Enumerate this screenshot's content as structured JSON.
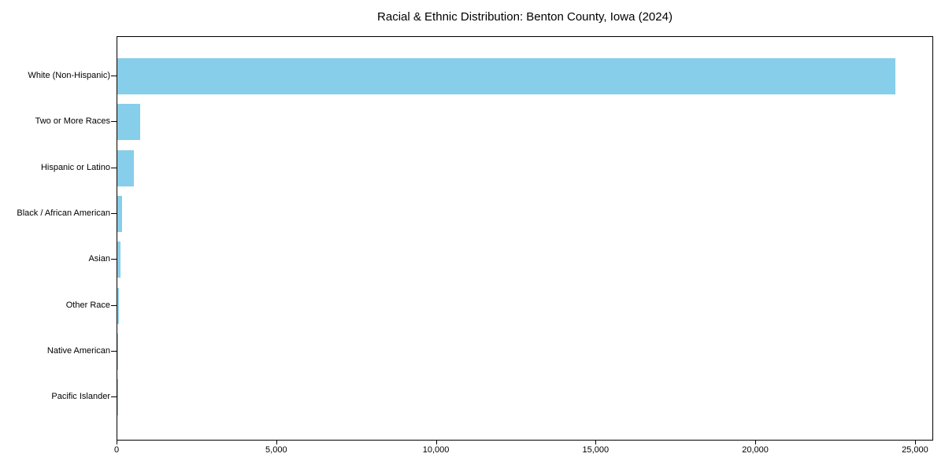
{
  "chart_data": {
    "type": "bar",
    "orientation": "horizontal",
    "title": "Racial & Ethnic Distribution: Benton County, Iowa (2024)",
    "categories": [
      "White (Non-Hispanic)",
      "Two or More Races",
      "Hispanic or Latino",
      "Black / African American",
      "Asian",
      "Other Race",
      "Native American",
      "Pacific Islander"
    ],
    "values": [
      24350,
      715,
      525,
      155,
      90,
      50,
      25,
      5
    ],
    "xlabel": "",
    "ylabel": "",
    "xlim": [
      0,
      25570
    ],
    "xticks": {
      "values": [
        0,
        5000,
        10000,
        15000,
        20000,
        25000
      ],
      "labels": [
        "0",
        "5,000",
        "10,000",
        "15,000",
        "20,000",
        "25,000"
      ]
    },
    "grid": false,
    "legend_position": "none",
    "bar_color": "#87CEEB",
    "axis_color": "#000000",
    "background_color": "#ffffff"
  }
}
